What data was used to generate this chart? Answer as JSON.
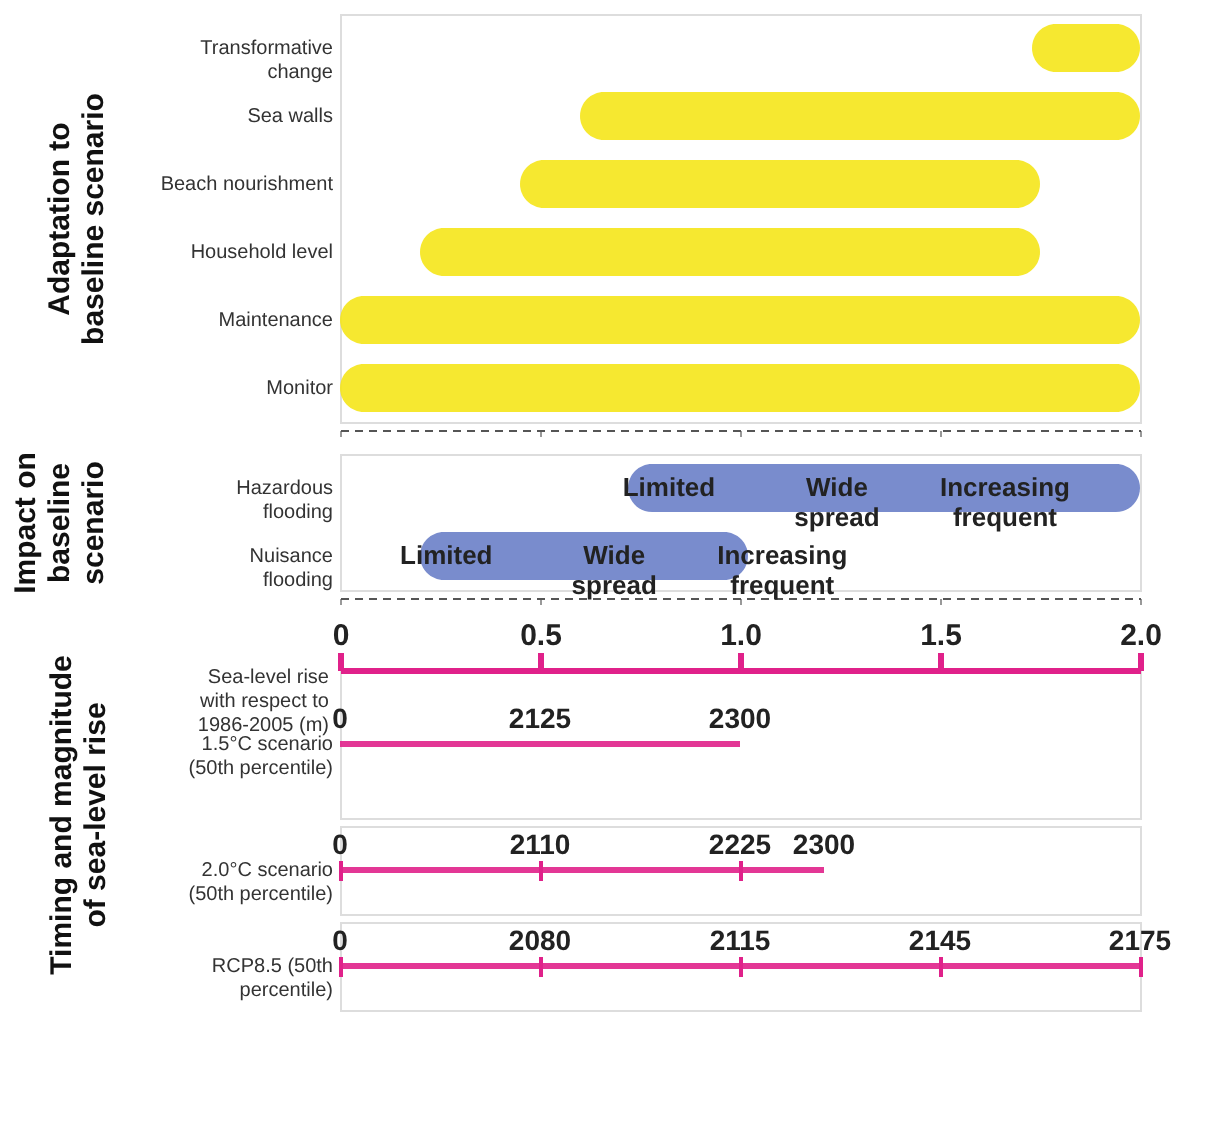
{
  "chart_data": [
    {
      "type": "bar",
      "orientation": "horizontal",
      "ylabel": "Adaptation to baseline scenario",
      "categories": [
        "Transformative change",
        "Sea walls",
        "Beach nourishment",
        "Household level",
        "Maintenance",
        "Monitor"
      ],
      "base": [
        1.73,
        0.6,
        0.45,
        0.2,
        0,
        0
      ],
      "values": [
        0.27,
        1.4,
        1.3,
        1.55,
        2.0,
        2.0
      ],
      "color": "#f5e61a",
      "xlim": [
        0,
        2.0
      ],
      "xticks": [
        0,
        0.5,
        1,
        1.5,
        2
      ],
      "tick_labels": "y"
    },
    {
      "type": "bar",
      "orientation": "horizontal",
      "ylabel": "Impact on baseline scenario",
      "categories": [
        "Hazardous flooding",
        "Nuisance flooding"
      ],
      "base": [
        0.72,
        0.2
      ],
      "values": [
        1.28,
        0.82
      ],
      "color": "#6a7fc8",
      "xlim": [
        0,
        2.0
      ],
      "xticks": [
        0,
        0.5,
        1,
        1.5,
        2
      ],
      "tick_labels": "y",
      "annotations": [
        "Limited",
        "Wide spread",
        "Increasing frequent",
        "Limited",
        "Wide spread",
        "Increasing frequent"
      ]
    },
    {
      "type": "bar",
      "orientation": "horizontal",
      "ylabel": "Timing and magnitude of sea-level rise",
      "xlabel": "Sea-level rise with respect to 1986-2005 (m)",
      "categories": [
        "1.5°C scenario (50th percentile)"
      ],
      "base": [
        0
      ],
      "values": [
        1.0
      ],
      "color": "#e0218a",
      "xlim": [
        0,
        2.0
      ],
      "xticks": [
        0,
        0.5,
        {
          "value": 1,
          "label": "1.0"
        },
        1.5,
        {
          "value": 2,
          "label": "2.0"
        }
      ],
      "annotations": [
        "0",
        "2125",
        "2300"
      ]
    },
    {
      "type": "bar",
      "orientation": "horizontal",
      "categories": [
        "2.0°C scenario (50th percentile)"
      ],
      "base": [
        0
      ],
      "values": [
        1.21
      ],
      "color": "#e0218a",
      "xlim": [
        0,
        2.0
      ],
      "xticks": [
        0,
        0.5,
        1,
        1.5,
        2
      ],
      "tick_labels": "y",
      "annotations": [
        "0",
        "2110",
        "2225",
        "2300"
      ]
    },
    {
      "type": "bar",
      "orientation": "horizontal",
      "categories": [
        "RCP8.5 (50th percentile)"
      ],
      "base": [
        0
      ],
      "values": [
        2.0
      ],
      "color": "#e0218a",
      "xlim": [
        0,
        2.0
      ],
      "xticks": [
        0,
        0.5,
        1,
        1.5,
        2
      ],
      "tick_labels": "y",
      "annotations": [
        "0",
        "2080",
        "2115",
        "2145",
        "2175"
      ]
    }
  ]
}
